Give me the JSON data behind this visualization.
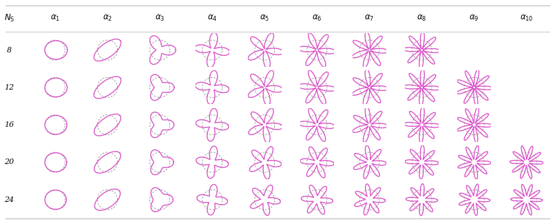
{
  "Ns_values": [
    8,
    12,
    16,
    20,
    24
  ],
  "n_modes": 10,
  "magenta": "#d955c8",
  "dashed_color": "#888888",
  "bg_color": "#ffffff",
  "lw_solid": 1.0,
  "lw_dashed": 0.6,
  "header_fontsize": 8.5,
  "label_fontsize": 8,
  "available_cells": {
    "8": [
      1,
      2,
      3,
      4,
      5,
      6,
      7,
      8
    ],
    "12": [
      1,
      2,
      3,
      4,
      5,
      6,
      7,
      8,
      9
    ],
    "16": [
      1,
      2,
      3,
      4,
      5,
      6,
      7,
      8,
      9
    ],
    "20": [
      1,
      2,
      3,
      4,
      5,
      6,
      7,
      8,
      9,
      10
    ],
    "24": [
      1,
      2,
      3,
      4,
      5,
      6,
      7,
      8,
      9,
      10
    ]
  },
  "mode_lobes": [
    1,
    2,
    3,
    4,
    5,
    6,
    7,
    8,
    9,
    10
  ],
  "amplitudes_by_ns": {
    "8": [
      0.3,
      0.55,
      0.55,
      0.7,
      0.8,
      0.8,
      0.8,
      0.8,
      0.0,
      0.0
    ],
    "12": [
      0.28,
      0.55,
      0.4,
      0.65,
      0.8,
      0.8,
      0.8,
      0.8,
      0.8,
      0.0
    ],
    "16": [
      0.25,
      0.52,
      0.38,
      0.6,
      0.75,
      0.75,
      0.75,
      0.75,
      0.75,
      0.0
    ],
    "20": [
      0.22,
      0.5,
      0.35,
      0.58,
      0.65,
      0.65,
      0.65,
      0.65,
      0.65,
      0.65
    ],
    "24": [
      0.18,
      0.45,
      0.3,
      0.5,
      0.55,
      0.55,
      0.55,
      0.55,
      0.55,
      0.55
    ]
  },
  "phases_by_ns": {
    "8": [
      0.0,
      0.0,
      0.0,
      0.52,
      0.63,
      0.52,
      0.45,
      0.39,
      0.0,
      0.0
    ],
    "12": [
      0.0,
      0.0,
      0.0,
      0.52,
      0.63,
      0.52,
      0.45,
      0.39,
      0.35,
      0.0
    ],
    "16": [
      0.0,
      0.0,
      0.0,
      0.52,
      0.63,
      0.52,
      0.45,
      0.39,
      0.35,
      0.0
    ],
    "20": [
      0.0,
      0.0,
      0.0,
      0.52,
      0.63,
      0.52,
      0.45,
      0.39,
      0.35,
      0.31
    ],
    "24": [
      0.0,
      0.0,
      0.0,
      0.52,
      0.63,
      0.52,
      0.45,
      0.39,
      0.35,
      0.31
    ]
  }
}
